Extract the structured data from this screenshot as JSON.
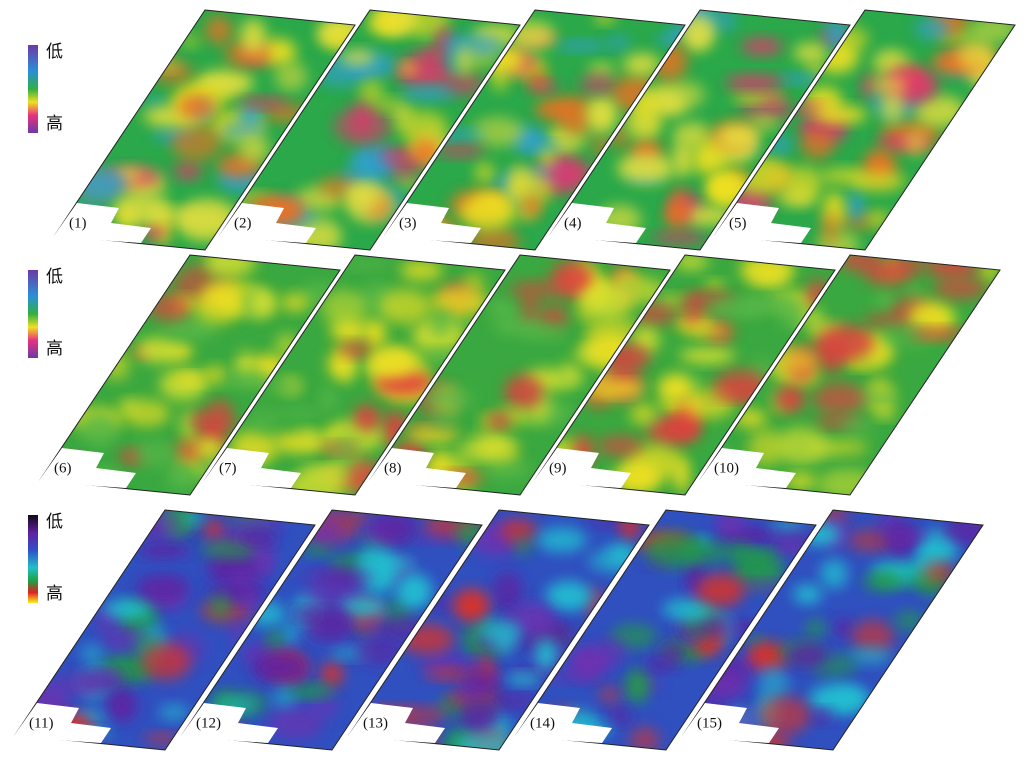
{
  "legends": [
    {
      "low": "低",
      "high": "高"
    },
    {
      "low": "低",
      "high": "高"
    },
    {
      "low": "低",
      "high": "高"
    }
  ],
  "panels": [
    {
      "label": "(1)"
    },
    {
      "label": "(2)"
    },
    {
      "label": "(3)"
    },
    {
      "label": "(4)"
    },
    {
      "label": "(5)"
    },
    {
      "label": "(6)"
    },
    {
      "label": "(7)"
    },
    {
      "label": "(8)"
    },
    {
      "label": "(9)"
    },
    {
      "label": "(10)"
    },
    {
      "label": "(11)"
    },
    {
      "label": "(12)"
    },
    {
      "label": "(13)"
    },
    {
      "label": "(14)"
    },
    {
      "label": "(15)"
    }
  ]
}
